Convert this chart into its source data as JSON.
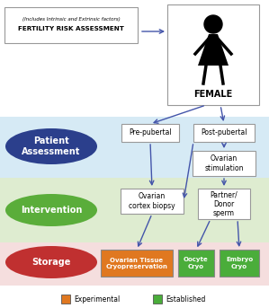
{
  "bg_color": "#ffffff",
  "title": "FERTILITY RISK ASSESSMENT",
  "subtitle": "(Includes Intrinsic and Extrinsic factors)",
  "female_label": "FEMALE",
  "band_colors": {
    "patient": "#d6eaf5",
    "intervention": "#deecd0",
    "storage": "#f5dede"
  },
  "oval_colors": {
    "patient": "#2b3f8c",
    "intervention": "#5aad3a",
    "storage": "#c03030"
  },
  "oval_labels": {
    "patient": "Patient\nAssessment",
    "intervention": "Intervention",
    "storage": "Storage"
  },
  "box_labels": {
    "pre_pubertal": "Pre-pubertal",
    "post_pubertal": "Post-pubertal",
    "ovarian_stim": "Ovarian\nstimulation",
    "ovarian_biopsy": "Ovarian\ncortex biopsy",
    "partner_sperm": "Partner/\nDonor\nsperm",
    "ovarian_cryo": "Ovarian Tissue\nCryopreservation",
    "oocyte_cryo": "Oocyte\nCryo",
    "embryo_cryo": "Embryo\nCryo"
  },
  "storage_box_colors": {
    "ovarian_cryo": "#e07820",
    "oocyte_cryo": "#4aad3a",
    "embryo_cryo": "#4aad3a"
  },
  "legend": {
    "experimental_color": "#e07820",
    "established_color": "#4aad3a",
    "experimental_label": "Experimental",
    "established_label": "Established"
  },
  "arrow_color": "#4455aa"
}
